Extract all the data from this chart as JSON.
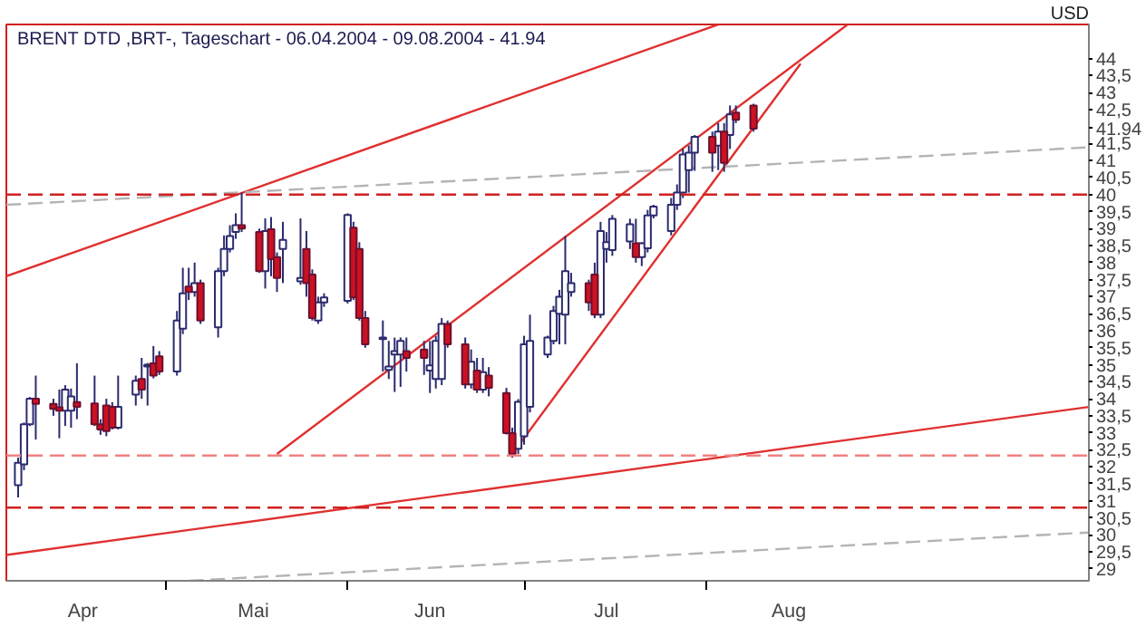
{
  "chart_data": {
    "type": "candlestick",
    "title": "BRENT DTD ,BRT-, Tageschart - 06.04.2004 - 09.08.2004 - 41.94",
    "ylabel": "USD",
    "x": [
      "2004-04-06",
      "2004-04-07",
      "2004-04-08",
      "2004-04-09",
      "2004-04-12",
      "2004-04-13",
      "2004-04-14",
      "2004-04-15",
      "2004-04-16",
      "2004-04-19",
      "2004-04-20",
      "2004-04-21",
      "2004-04-22",
      "2004-04-23",
      "2004-04-26",
      "2004-04-27",
      "2004-04-28",
      "2004-04-29",
      "2004-04-30",
      "2004-05-03",
      "2004-05-04",
      "2004-05-05",
      "2004-05-06",
      "2004-05-07",
      "2004-05-10",
      "2004-05-11",
      "2004-05-12",
      "2004-05-13",
      "2004-05-14",
      "2004-05-17",
      "2004-05-18",
      "2004-05-19",
      "2004-05-20",
      "2004-05-21",
      "2004-05-24",
      "2004-05-25",
      "2004-05-26",
      "2004-05-27",
      "2004-05-28",
      "2004-06-01",
      "2004-06-02",
      "2004-06-03",
      "2004-06-04",
      "2004-06-07",
      "2004-06-08",
      "2004-06-09",
      "2004-06-10",
      "2004-06-11",
      "2004-06-14",
      "2004-06-15",
      "2004-06-16",
      "2004-06-17",
      "2004-06-18",
      "2004-06-21",
      "2004-06-22",
      "2004-06-23",
      "2004-06-24",
      "2004-06-25",
      "2004-06-28",
      "2004-06-29",
      "2004-06-30",
      "2004-07-01",
      "2004-07-02",
      "2004-07-05",
      "2004-07-06",
      "2004-07-07",
      "2004-07-08",
      "2004-07-09",
      "2004-07-12",
      "2004-07-13",
      "2004-07-14",
      "2004-07-15",
      "2004-07-16",
      "2004-07-19",
      "2004-07-20",
      "2004-07-21",
      "2004-07-22",
      "2004-07-23",
      "2004-07-26",
      "2004-07-27",
      "2004-07-28",
      "2004-07-29",
      "2004-07-30",
      "2004-08-02",
      "2004-08-03",
      "2004-08-04",
      "2004-08-05",
      "2004-08-06",
      "2004-08-09"
    ],
    "ohlc": [
      [
        31.46,
        32.27,
        31.1,
        32.12
      ],
      [
        32.07,
        33.3,
        31.9,
        33.25
      ],
      [
        33.25,
        34.05,
        33.2,
        34.0
      ],
      [
        34.0,
        34.68,
        32.8,
        33.85
      ],
      [
        33.85,
        34.0,
        33.5,
        33.7
      ],
      [
        33.75,
        34.27,
        32.84,
        33.65
      ],
      [
        33.65,
        34.4,
        33.2,
        34.27
      ],
      [
        33.65,
        34.3,
        33.15,
        34.07
      ],
      [
        33.9,
        35.04,
        33.4,
        33.76
      ],
      [
        33.86,
        34.68,
        33.2,
        33.25
      ],
      [
        33.25,
        33.4,
        32.94,
        33.1
      ],
      [
        33.8,
        34.0,
        32.9,
        33.05
      ],
      [
        33.76,
        33.9,
        33.1,
        33.15
      ],
      [
        33.15,
        34.68,
        33.1,
        33.76
      ],
      [
        34.12,
        34.68,
        33.8,
        34.53
      ],
      [
        34.58,
        35.2,
        34.0,
        34.27
      ],
      [
        34.95,
        35.05,
        33.8,
        35.0
      ],
      [
        35.04,
        35.55,
        34.6,
        34.68
      ],
      [
        35.25,
        35.4,
        34.7,
        34.8
      ],
      [
        34.8,
        36.58,
        34.68,
        36.3
      ],
      [
        36.06,
        37.85,
        35.9,
        37.1
      ],
      [
        37.3,
        37.85,
        36.9,
        37.14
      ],
      [
        37.14,
        38.0,
        37.0,
        37.4
      ],
      [
        37.4,
        37.5,
        36.2,
        36.3
      ],
      [
        36.1,
        37.85,
        35.8,
        37.75
      ],
      [
        37.75,
        38.8,
        37.6,
        38.4
      ],
      [
        38.4,
        39.1,
        38.3,
        38.78
      ],
      [
        38.9,
        39.45,
        38.7,
        39.1
      ],
      [
        39.1,
        40.06,
        38.9,
        39.0
      ],
      [
        38.9,
        39.0,
        37.7,
        37.75
      ],
      [
        37.75,
        39.3,
        37.24,
        38.93
      ],
      [
        38.98,
        39.34,
        37.6,
        38.1
      ],
      [
        38.16,
        38.3,
        37.14,
        37.55
      ],
      [
        38.4,
        39.2,
        37.4,
        38.67
      ],
      [
        37.45,
        39.3,
        37.35,
        37.55
      ],
      [
        38.4,
        38.93,
        37.0,
        37.4
      ],
      [
        37.65,
        37.8,
        36.3,
        36.37
      ],
      [
        36.3,
        37.0,
        36.2,
        36.83
      ],
      [
        36.83,
        37.1,
        36.7,
        36.98
      ],
      [
        36.88,
        39.45,
        36.8,
        39.4
      ],
      [
        39.03,
        39.2,
        36.9,
        36.98
      ],
      [
        38.4,
        38.6,
        36.3,
        36.37
      ],
      [
        36.37,
        36.58,
        35.5,
        35.6
      ],
      [
        35.75,
        36.3,
        34.8,
        35.8
      ],
      [
        34.85,
        35.7,
        34.58,
        34.95
      ],
      [
        35.3,
        35.8,
        34.2,
        35.4
      ],
      [
        35.3,
        35.8,
        34.35,
        35.7
      ],
      [
        35.4,
        35.8,
        34.8,
        35.2
      ],
      [
        35.45,
        35.7,
        34.7,
        35.2
      ],
      [
        34.83,
        35.7,
        34.17,
        34.98
      ],
      [
        34.58,
        35.85,
        34.3,
        35.7
      ],
      [
        34.58,
        36.37,
        34.4,
        36.2
      ],
      [
        36.2,
        36.3,
        35.5,
        35.6
      ],
      [
        35.6,
        35.8,
        34.3,
        34.42
      ],
      [
        34.42,
        35.45,
        34.3,
        35.09
      ],
      [
        34.83,
        35.2,
        34.17,
        34.27
      ],
      [
        34.27,
        35.2,
        34.17,
        34.78
      ],
      [
        34.68,
        34.93,
        34.07,
        34.32
      ],
      [
        34.17,
        34.32,
        32.95,
        32.99
      ],
      [
        32.99,
        33.15,
        32.27,
        32.38
      ],
      [
        32.53,
        33.99,
        32.38,
        33.91
      ],
      [
        32.9,
        35.85,
        32.65,
        35.6
      ],
      [
        33.76,
        36.47,
        33.6,
        35.7
      ],
      [
        35.3,
        35.85,
        35.2,
        35.8
      ],
      [
        35.7,
        36.73,
        35.6,
        36.58
      ],
      [
        36.5,
        37.2,
        35.6,
        37.0
      ],
      [
        36.47,
        38.78,
        35.6,
        37.75
      ],
      [
        37.14,
        37.7,
        37.0,
        37.4
      ],
      [
        37.4,
        37.5,
        36.58,
        36.83
      ],
      [
        37.65,
        38.0,
        36.37,
        36.47
      ],
      [
        36.47,
        39.2,
        36.37,
        38.93
      ],
      [
        38.4,
        38.9,
        38.0,
        38.6
      ],
      [
        38.37,
        39.4,
        38.2,
        39.29
      ],
      [
        38.62,
        39.29,
        38.4,
        39.13
      ],
      [
        38.57,
        39.29,
        38.0,
        38.16
      ],
      [
        38.16,
        38.6,
        37.9,
        38.57
      ],
      [
        38.42,
        39.55,
        38.3,
        39.39
      ],
      [
        39.39,
        39.7,
        39.3,
        39.65
      ],
      [
        38.93,
        39.9,
        38.8,
        39.7
      ],
      [
        39.7,
        40.3,
        39.55,
        40.06
      ],
      [
        40.06,
        41.34,
        39.9,
        41.18
      ],
      [
        40.72,
        41.44,
        40.06,
        41.23
      ],
      [
        41.23,
        41.75,
        40.7,
        41.7
      ],
      [
        41.7,
        41.85,
        40.67,
        41.23
      ],
      [
        41.44,
        42.1,
        40.72,
        41.85
      ],
      [
        41.85,
        42.1,
        40.67,
        40.93
      ],
      [
        41.75,
        42.62,
        41.34,
        42.36
      ],
      [
        42.41,
        42.62,
        42.1,
        42.2
      ],
      [
        42.62,
        42.67,
        41.85,
        41.94
      ]
    ],
    "series": [
      {
        "type": "line",
        "color": "#e03030",
        "x": [
          "2004-04-04",
          "2004-08-03"
        ],
        "values": [
          37.6,
          45.0
        ]
      },
      {
        "type": "line",
        "color": "#e03030",
        "x": [
          "2004-05-20",
          "2004-08-25"
        ],
        "values": [
          32.38,
          45.0
        ]
      },
      {
        "type": "line",
        "color": "#e03030",
        "x": [
          "2004-06-29",
          "2004-08-17"
        ],
        "values": [
          32.38,
          43.85
        ]
      },
      {
        "type": "line",
        "color": "#e03030",
        "x": [
          "2004-04-04",
          "2004-10-05"
        ],
        "values": [
          29.41,
          33.76
        ]
      },
      {
        "type": "line",
        "color": "#b4b4b4",
        "line_style": "dashed",
        "x": [
          "2004-04-04",
          "2004-10-05"
        ],
        "values": [
          39.7,
          41.39
        ]
      },
      {
        "type": "line",
        "color": "#b4b4b4",
        "line_style": "dashed",
        "x": [
          "2004-05-05",
          "2004-10-05"
        ],
        "values": [
          28.65,
          30.07
        ]
      }
    ],
    "ref_lines": [
      {
        "axis": "y",
        "value": 40.0,
        "color": "#d02020",
        "line_style": "dashed"
      },
      {
        "axis": "y",
        "value": 32.33,
        "color": "#f08080",
        "line_style": "dashed"
      },
      {
        "axis": "y",
        "value": 30.8,
        "color": "#d02020",
        "line_style": "dashed"
      }
    ],
    "xlim": [
      "2004-04-04",
      "2004-10-05"
    ],
    "xticks": [
      {
        "value": "2004-04-17",
        "label": "Apr"
      },
      {
        "value": "2004-05-01",
        "label": null
      },
      {
        "value": "2004-05-16",
        "label": "Mai"
      },
      {
        "value": "2004-06-01",
        "label": null
      },
      {
        "value": "2004-06-15",
        "label": "Jun"
      },
      {
        "value": "2004-07-01",
        "label": null
      },
      {
        "value": "2004-07-15",
        "label": "Jul"
      },
      {
        "value": "2004-08-01",
        "label": null
      },
      {
        "value": "2004-08-15",
        "label": "Aug"
      }
    ],
    "ylim": [
      28.65,
      45.0
    ],
    "yticks": [
      29,
      {
        "value": 29.5,
        "label": "29,5"
      },
      30,
      {
        "value": 30.5,
        "label": "30,5"
      },
      31,
      {
        "value": 31.5,
        "label": "31,5"
      },
      32,
      {
        "value": 32.5,
        "label": "32,5"
      },
      33,
      {
        "value": 33.5,
        "label": "33,5"
      },
      34,
      {
        "value": 34.5,
        "label": "34,5"
      },
      35,
      {
        "value": 35.5,
        "label": "35,5"
      },
      36,
      {
        "value": 36.5,
        "label": "36,5"
      },
      37,
      {
        "value": 37.5,
        "label": "37,5"
      },
      38,
      {
        "value": 38.5,
        "label": "38,5"
      },
      39,
      {
        "value": 39.5,
        "label": "39,5"
      },
      40,
      {
        "value": 40.5,
        "label": "40,5"
      },
      41,
      {
        "value": 41.5,
        "label": "41,5"
      },
      {
        "value": 41.94,
        "label": "41.94"
      },
      {
        "value": 42.5,
        "label": "42,5"
      },
      43,
      {
        "value": 43.5,
        "label": "43,5"
      },
      44
    ]
  }
}
